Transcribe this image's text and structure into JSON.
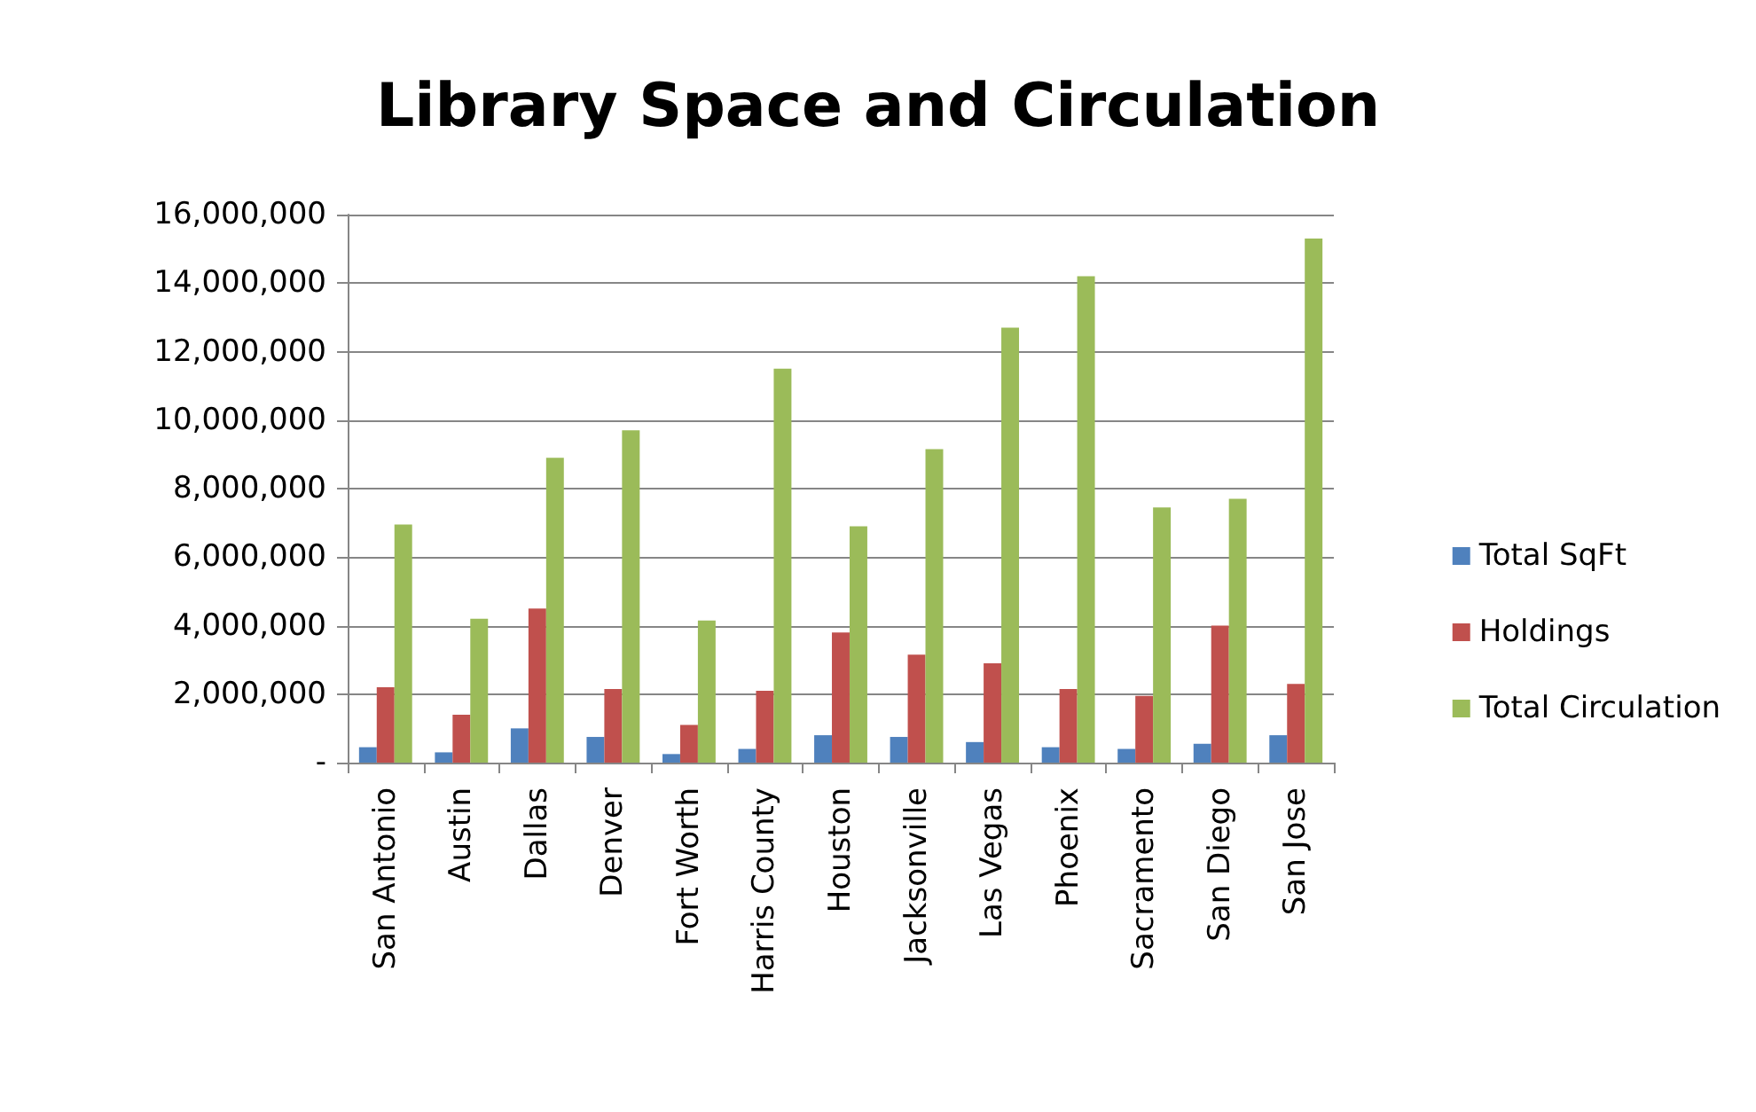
{
  "chart_data": {
    "type": "bar",
    "title": "Library Space and Circulation",
    "categories": [
      "San Antonio",
      "Austin",
      "Dallas",
      "Denver",
      "Fort Worth",
      "Harris County",
      "Houston",
      "Jacksonville",
      "Las Vegas",
      "Phoenix",
      "Sacramento",
      "San Diego",
      "San Jose"
    ],
    "series": [
      {
        "name": "Total SqFt",
        "color": "#4f81bd",
        "values": [
          450000,
          300000,
          1000000,
          750000,
          250000,
          400000,
          800000,
          750000,
          600000,
          450000,
          400000,
          550000,
          800000
        ]
      },
      {
        "name": "Holdings",
        "color": "#c0504d",
        "values": [
          2200000,
          1400000,
          4500000,
          2150000,
          1100000,
          2100000,
          3800000,
          3150000,
          2900000,
          2150000,
          1950000,
          4000000,
          2300000
        ]
      },
      {
        "name": "Total Circulation",
        "color": "#9bbb59",
        "values": [
          6950000,
          4200000,
          8900000,
          9700000,
          4150000,
          11500000,
          6900000,
          9150000,
          12700000,
          14200000,
          7450000,
          7700000,
          15300000
        ]
      }
    ],
    "ylim": [
      0,
      16000000
    ],
    "yticks": [
      {
        "value": 0,
        "label": "-"
      },
      {
        "value": 2000000,
        "label": "2,000,000"
      },
      {
        "value": 4000000,
        "label": "4,000,000"
      },
      {
        "value": 6000000,
        "label": "6,000,000"
      },
      {
        "value": 8000000,
        "label": "8,000,000"
      },
      {
        "value": 10000000,
        "label": "10,000,000"
      },
      {
        "value": 12000000,
        "label": "12,000,000"
      },
      {
        "value": 14000000,
        "label": "14,000,000"
      },
      {
        "value": 16000000,
        "label": "16,000,000"
      }
    ],
    "grid": "y",
    "legend": "right"
  }
}
